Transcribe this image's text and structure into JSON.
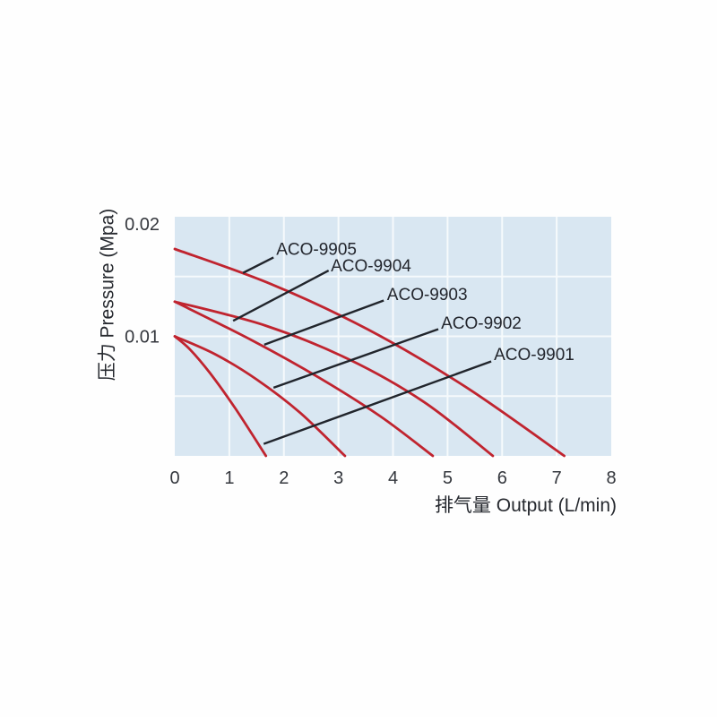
{
  "page": {
    "background": "#ffffff"
  },
  "chart_data": {
    "type": "line",
    "title": "",
    "xlabel": "排气量 Output (L/min)",
    "ylabel": "压力 Pressure (Mpa)",
    "xlim": [
      0,
      8
    ],
    "ylim": [
      0,
      0.02
    ],
    "x_ticks": [
      {
        "value": 0,
        "label": "0"
      },
      {
        "value": 1,
        "label": "1"
      },
      {
        "value": 2,
        "label": "2"
      },
      {
        "value": 3,
        "label": "3"
      },
      {
        "value": 4,
        "label": "4"
      },
      {
        "value": 5,
        "label": "5"
      },
      {
        "value": 6,
        "label": "6"
      },
      {
        "value": 7,
        "label": "7"
      },
      {
        "value": 8,
        "label": "8"
      }
    ],
    "y_ticks": [
      {
        "value": 0.02,
        "label": "0.02"
      },
      {
        "value": 0.01,
        "label": "0.01"
      }
    ],
    "x_grid": [
      1,
      2,
      3,
      4,
      5,
      6,
      7
    ],
    "y_grid": [
      0.005,
      0.01,
      0.015
    ],
    "grid_on": true,
    "legend": "inline-callouts",
    "plot_bg_color": "#d9e7f2",
    "grid_color": "#f6fafc",
    "line_color": "#c0242f",
    "callout_color": "#21252c",
    "series": [
      {
        "name": "ACO-9905",
        "points": [
          [
            0,
            0.0173
          ],
          [
            1.75,
            0.0144
          ],
          [
            3.53,
            0.0106
          ],
          [
            5.32,
            0.0058
          ],
          [
            7.14,
            0
          ]
        ],
        "callout": {
          "line": [
            [
              1.25,
              0.0153
            ],
            [
              1.81,
              0.0166
            ]
          ],
          "label_pos": [
            1.86,
            0.0172
          ]
        }
      },
      {
        "name": "ACO-9904",
        "points": [
          [
            0,
            0.0129
          ],
          [
            1.66,
            0.0109
          ],
          [
            3.18,
            0.0081
          ],
          [
            4.57,
            0.0045
          ],
          [
            5.83,
            0
          ]
        ],
        "callout": {
          "line": [
            [
              1.07,
              0.0113
            ],
            [
              2.82,
              0.0155
            ]
          ],
          "label_pos": [
            2.86,
            0.0158
          ]
        }
      },
      {
        "name": "ACO-9903",
        "points": [
          [
            0,
            0.0129
          ],
          [
            1.4,
            0.0097
          ],
          [
            2.66,
            0.0065
          ],
          [
            3.77,
            0.0033
          ],
          [
            4.73,
            0
          ]
        ],
        "callout": {
          "line": [
            [
              1.64,
              0.0093
            ],
            [
              3.83,
              0.013
            ]
          ],
          "label_pos": [
            3.89,
            0.0134
          ]
        }
      },
      {
        "name": "ACO-9902",
        "points": [
          [
            0,
            0.01
          ],
          [
            0.74,
            0.0085
          ],
          [
            1.5,
            0.0064
          ],
          [
            2.3,
            0.0036
          ],
          [
            3.12,
            0
          ]
        ],
        "callout": {
          "line": [
            [
              1.81,
              0.0057
            ],
            [
              4.83,
              0.0106
            ]
          ],
          "label_pos": [
            4.88,
            0.011
          ]
        }
      },
      {
        "name": "ACO-9901",
        "points": [
          [
            0,
            0.01
          ],
          [
            0.28,
            0.0089
          ],
          [
            0.65,
            0.0069
          ],
          [
            1.12,
            0.0039
          ],
          [
            1.67,
            0
          ]
        ],
        "callout": {
          "line": [
            [
              1.63,
              0.001
            ],
            [
              5.8,
              0.0079
            ]
          ],
          "label_pos": [
            5.85,
            0.0084
          ]
        }
      }
    ]
  }
}
